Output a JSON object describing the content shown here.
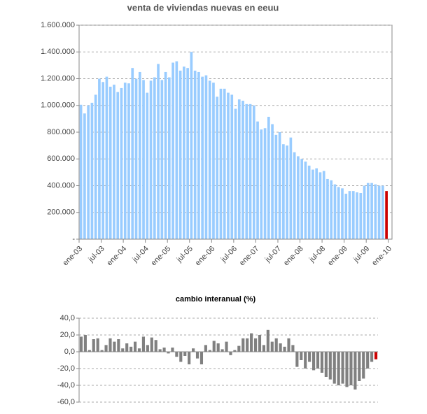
{
  "chart_data": [
    {
      "type": "bar",
      "title": "venta de viviendas nuevas en eeuu",
      "categories": [
        "ene-03",
        null,
        null,
        null,
        null,
        null,
        "jul-03",
        null,
        null,
        null,
        null,
        null,
        "ene-04",
        null,
        null,
        null,
        null,
        null,
        "jul-04",
        null,
        null,
        null,
        null,
        null,
        "ene-05",
        null,
        null,
        null,
        null,
        null,
        "jul-05",
        null,
        null,
        null,
        null,
        null,
        "ene-06",
        null,
        null,
        null,
        null,
        null,
        "jul-06",
        null,
        null,
        null,
        null,
        null,
        "ene-07",
        null,
        null,
        null,
        null,
        null,
        "jul-07",
        null,
        null,
        null,
        null,
        null,
        "ene-08",
        null,
        null,
        null,
        null,
        null,
        "jul-08",
        null,
        null,
        null,
        null,
        null,
        "ene-09",
        null,
        null,
        null,
        null,
        null,
        "jul-09",
        null,
        null,
        null,
        null,
        null,
        "ene-10"
      ],
      "values": [
        1005000,
        940000,
        1000000,
        1020000,
        1080000,
        1200000,
        1175000,
        1215000,
        1140000,
        1155000,
        1100000,
        1130000,
        1170000,
        1165000,
        1280000,
        1200000,
        1250000,
        1190000,
        1095000,
        1185000,
        1210000,
        1310000,
        1190000,
        1250000,
        1210000,
        1320000,
        1330000,
        1260000,
        1290000,
        1280000,
        1400000,
        1260000,
        1250000,
        1215000,
        1225000,
        1185000,
        1170000,
        1065000,
        1125000,
        1125000,
        1095000,
        1080000,
        975000,
        1045000,
        1035000,
        1010000,
        1010000,
        1000000,
        880000,
        820000,
        830000,
        915000,
        860000,
        780000,
        800000,
        710000,
        700000,
        760000,
        650000,
        620000,
        600000,
        580000,
        550000,
        520000,
        530000,
        500000,
        510000,
        450000,
        440000,
        410000,
        390000,
        380000,
        340000,
        360000,
        360000,
        350000,
        345000,
        400000,
        420000,
        420000,
        410000,
        400000,
        400000,
        360000,
        null
      ],
      "color": "#99ccff",
      "last_color": "#cc0000",
      "ylim": [
        0,
        1600000
      ],
      "yticks": [
        {
          "value": 0,
          "label": "-"
        },
        {
          "value": 200000,
          "label": "200.000"
        },
        {
          "value": 400000,
          "label": "400.000"
        },
        {
          "value": 600000,
          "label": "600.000"
        },
        {
          "value": 800000,
          "label": "800.000"
        },
        {
          "value": 1000000,
          "label": "1.000.000"
        },
        {
          "value": 1200000,
          "label": "1.200.000"
        },
        {
          "value": 1400000,
          "label": "1.400.000"
        },
        {
          "value": 1600000,
          "label": "1.600.000"
        }
      ],
      "grid": true
    },
    {
      "type": "bar",
      "title": "cambio interanual (%)",
      "values": [
        18,
        20,
        2,
        15,
        16,
        2,
        8,
        16,
        12,
        15,
        4,
        10,
        6,
        12,
        4,
        18,
        8,
        17,
        14,
        3,
        5,
        -2,
        5,
        -6,
        -12,
        -5,
        -15,
        4,
        -8,
        -15,
        8,
        2,
        13,
        10,
        3,
        12,
        -4,
        2,
        7,
        16,
        16,
        22,
        16,
        20,
        8,
        26,
        12,
        16,
        10,
        6,
        16,
        8,
        -18,
        -10,
        -20,
        -12,
        -22,
        -20,
        -25,
        -30,
        -33,
        -38,
        -40,
        -38,
        -42,
        -40,
        -45,
        -35,
        -32,
        -20,
        -12,
        -9
      ],
      "color": "#808080",
      "last_color": "#cc0000",
      "ylim": [
        -60,
        40
      ],
      "yticks": [
        {
          "value": -60,
          "label": "-60,0"
        },
        {
          "value": -40,
          "label": "-40,0"
        },
        {
          "value": -20,
          "label": "-20,0"
        },
        {
          "value": 0,
          "label": "0,0"
        },
        {
          "value": 20,
          "label": "20,0"
        },
        {
          "value": 40,
          "label": "40,0"
        }
      ],
      "grid": true
    }
  ]
}
